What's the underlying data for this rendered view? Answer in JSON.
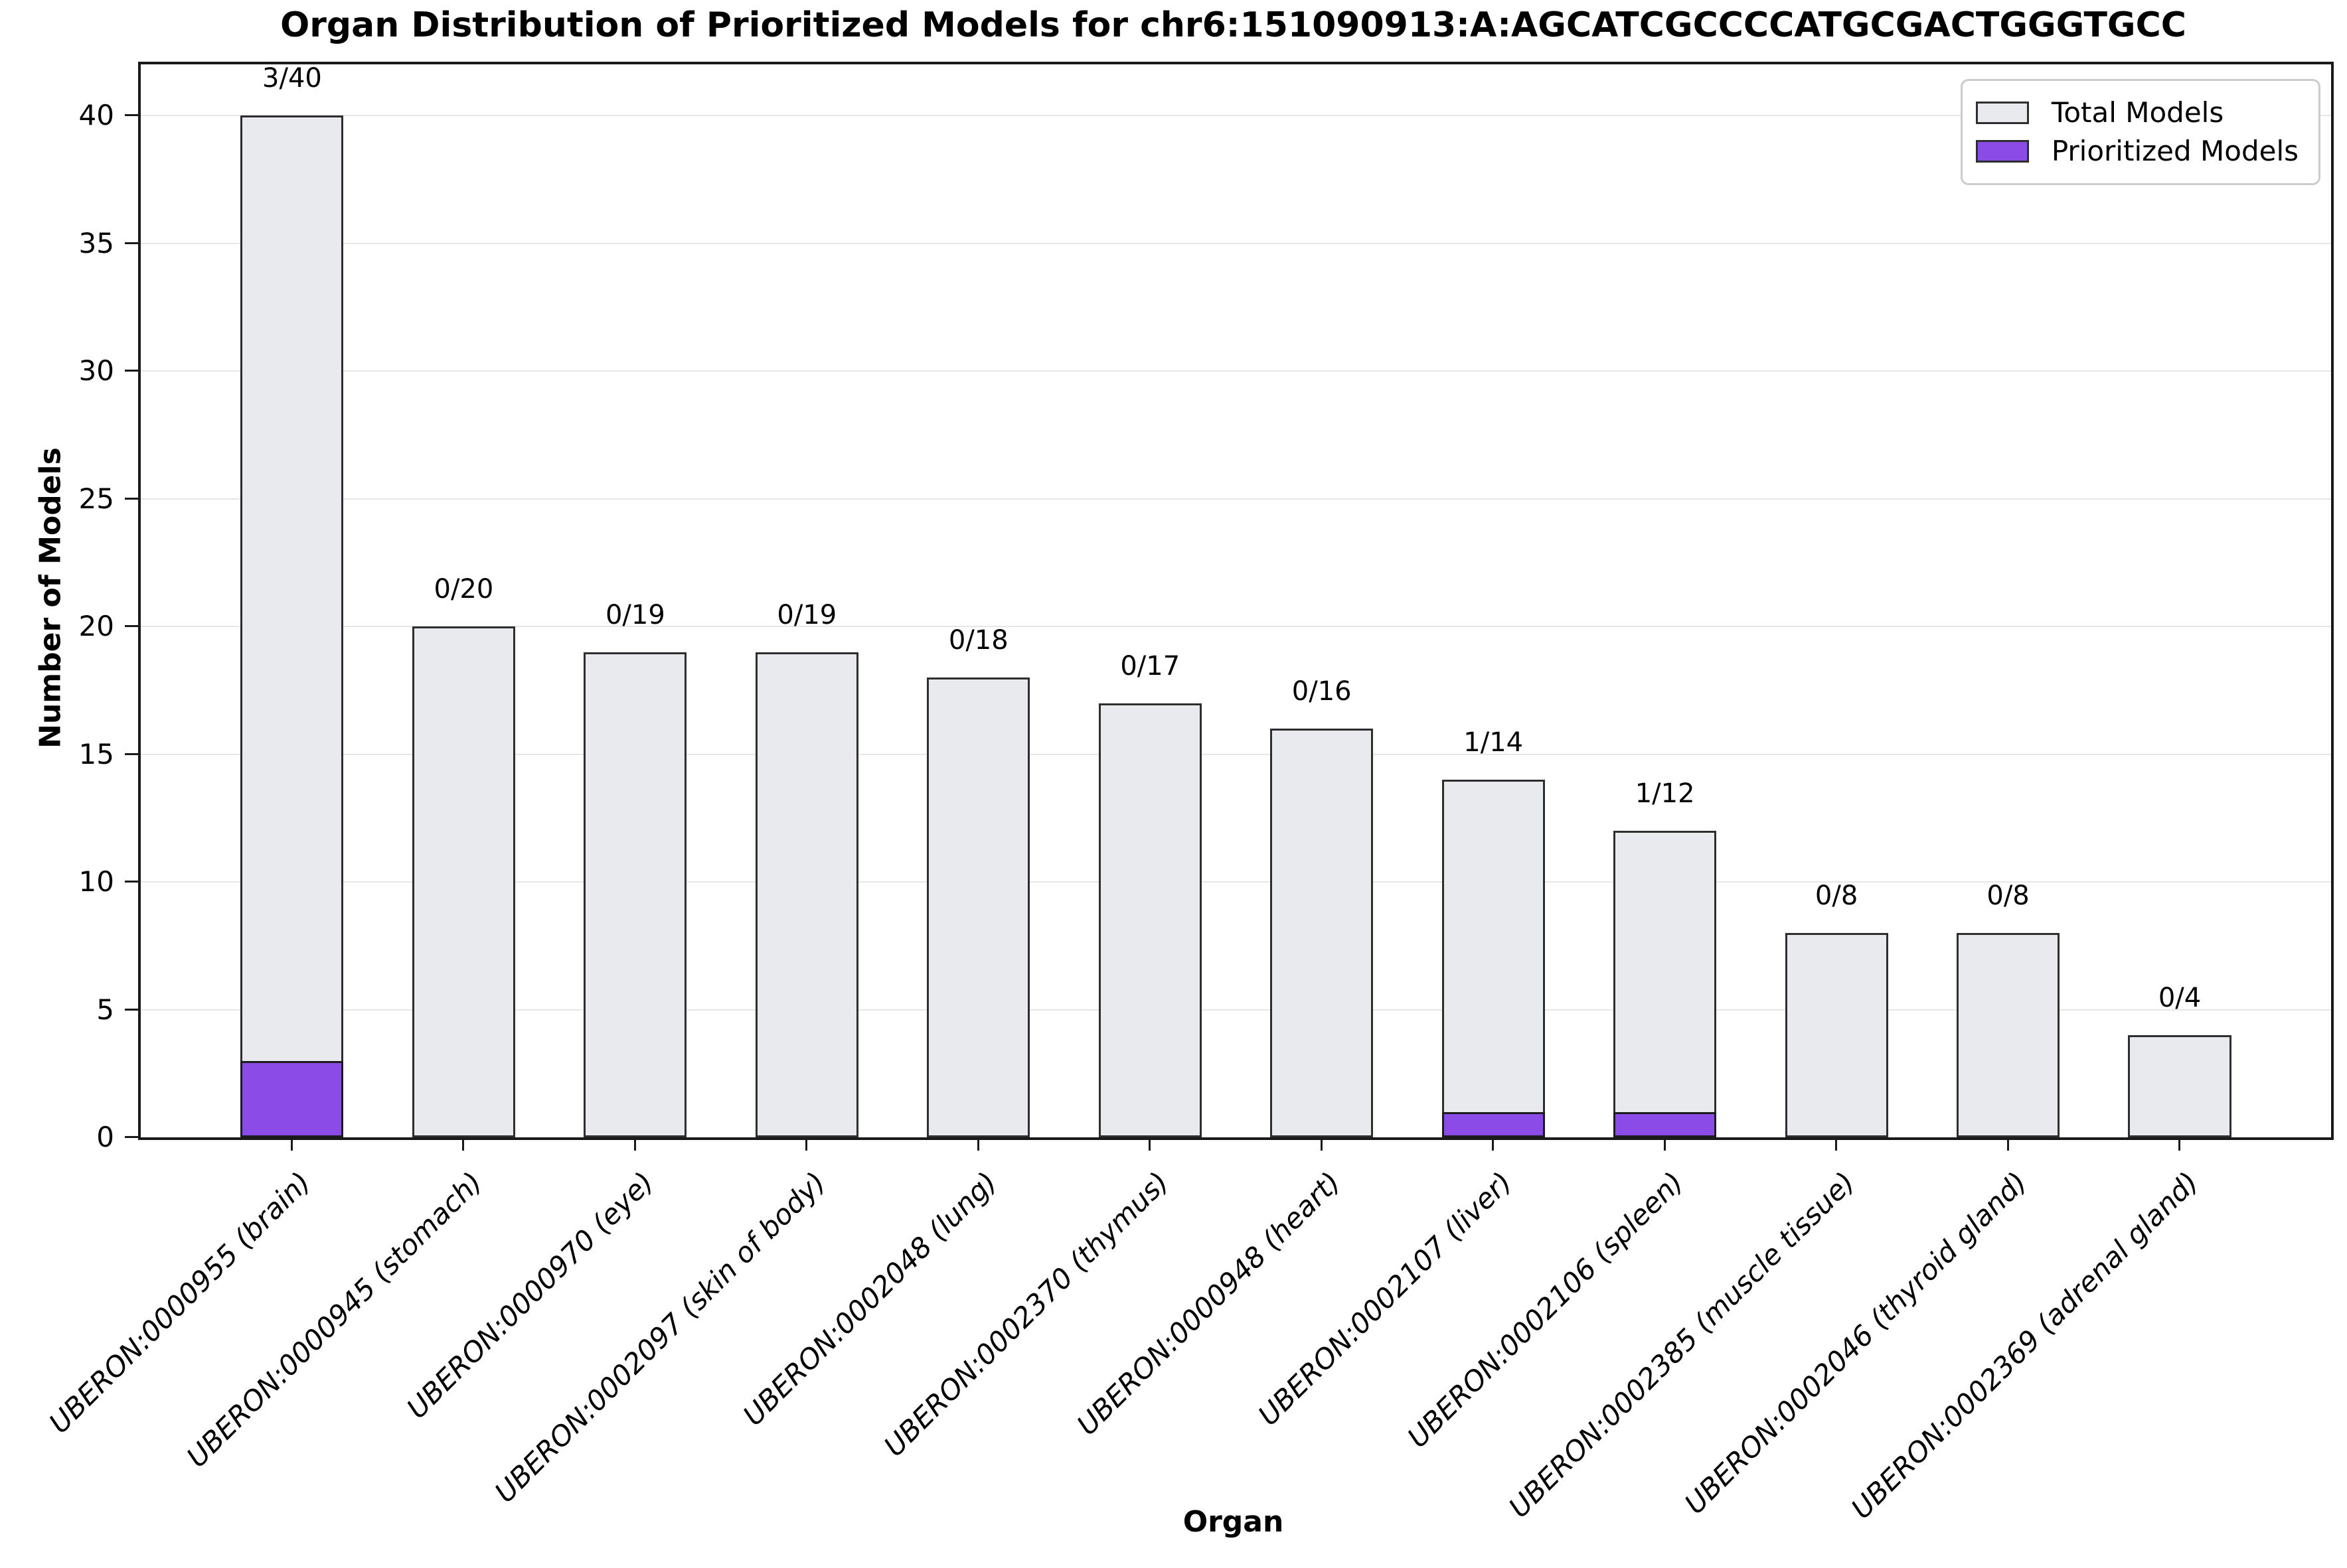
{
  "chart_data": {
    "type": "bar",
    "title": "Organ Distribution of Prioritized Models for chr6:151090913:A:AGCATCGCCCCATGCGACTGGGTGCC",
    "xlabel": "Organ",
    "ylabel": "Number of Models",
    "ylim": [
      0,
      42
    ],
    "yticks": [
      0,
      5,
      10,
      15,
      20,
      25,
      30,
      35,
      40
    ],
    "grid": "horizontal",
    "legend_position": "upper right",
    "categories": [
      "UBERON:0000955 (brain)",
      "UBERON:0000945 (stomach)",
      "UBERON:0000970 (eye)",
      "UBERON:0002097 (skin of body)",
      "UBERON:0002048 (lung)",
      "UBERON:0002370 (thymus)",
      "UBERON:0000948 (heart)",
      "UBERON:0002107 (liver)",
      "UBERON:0002106 (spleen)",
      "UBERON:0002385 (muscle tissue)",
      "UBERON:0002046 (thyroid gland)",
      "UBERON:0002369 (adrenal gland)"
    ],
    "series": [
      {
        "name": "Total Models",
        "color": "#e9eaee",
        "values": [
          40,
          20,
          19,
          19,
          18,
          17,
          16,
          14,
          12,
          8,
          8,
          4
        ]
      },
      {
        "name": "Prioritized Models",
        "color": "#8a4be6",
        "values": [
          3,
          0,
          0,
          0,
          0,
          0,
          0,
          1,
          1,
          0,
          0,
          0
        ]
      }
    ],
    "bar_labels": [
      "3/40",
      "0/20",
      "0/19",
      "0/19",
      "0/18",
      "0/17",
      "0/16",
      "1/14",
      "1/12",
      "0/8",
      "0/8",
      "0/4"
    ],
    "colors": {
      "total_fill": "#e9eaee",
      "prioritized_fill": "#8a4be6",
      "bar_edge": "#2e2e2e",
      "grid": "#e7e7e9",
      "spine": "#1a1a1a",
      "legend_border": "#cccccc",
      "background": "#ffffff"
    }
  }
}
